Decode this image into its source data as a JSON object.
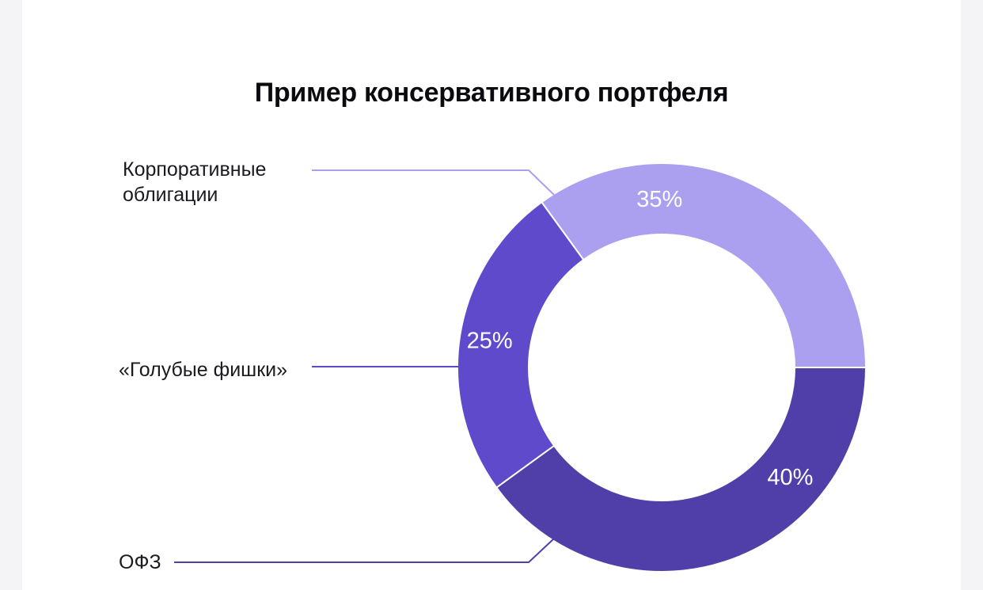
{
  "chart_data": {
    "type": "pie",
    "variant": "donut",
    "title": "Пример консервативного портфеля",
    "slices": [
      {
        "label": "Корпоративные облигации",
        "value": 35,
        "value_label": "35%",
        "color": "#ab9ff0"
      },
      {
        "label": "«Голубые фишки»",
        "value": 25,
        "value_label": "25%",
        "color": "#5e4acb"
      },
      {
        "label": "ОФЗ",
        "value": 40,
        "value_label": "40%",
        "color": "#513fa9"
      }
    ],
    "legend_placement": "left"
  }
}
